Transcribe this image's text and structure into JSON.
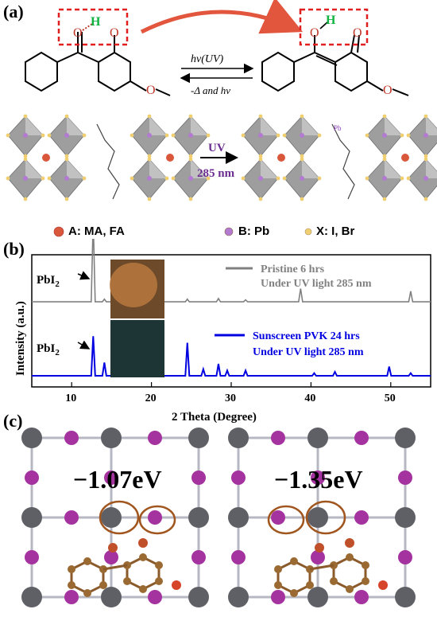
{
  "panel_a": {
    "label": "(a)",
    "forward_label": "hν(UV)",
    "reverse_label": "-Δ and hν",
    "h_atom": "H",
    "uv_label": "UV",
    "uv_wavelength": "285 nm",
    "pb_atom": "Pb",
    "legend": [
      {
        "label": "A: MA, FA",
        "color": "#d9583c"
      },
      {
        "label": "B: Pb",
        "color": "#b27ad0"
      },
      {
        "label": "X: I, Br",
        "color": "#f0cf70"
      }
    ]
  },
  "panel_b": {
    "label": "(b)",
    "peak_label_base": "PbI",
    "peak_label_sub": "2",
    "legend_top": [
      "Pristine 6 hrs",
      "Under UV light 285 nm"
    ],
    "legend_bottom": [
      "Sunscreen PVK 24 hrs",
      "Under UV light 285 nm"
    ],
    "chart_data": {
      "type": "line",
      "xlabel": "2 Theta (Degree)",
      "ylabel": "Intensity (a.u.)",
      "xlim": [
        5,
        55
      ],
      "xticks": [
        10,
        20,
        30,
        40,
        50
      ],
      "series": [
        {
          "name": "Pristine 6 hrs Under UV light 285 nm",
          "color": "#808080",
          "baseline": 0.62,
          "peaks": [
            [
              12.7,
              0.62
            ],
            [
              14.1,
              0.02
            ],
            [
              19.9,
              0.015
            ],
            [
              24.5,
              0.02
            ],
            [
              28.4,
              0.025
            ],
            [
              31.8,
              0.015
            ],
            [
              38.7,
              0.1
            ],
            [
              52.5,
              0.08
            ]
          ]
        },
        {
          "name": "Sunscreen PVK 24 hrs Under UV light 285 nm",
          "color": "#0000e0",
          "baseline": 0.06,
          "peaks": [
            [
              12.7,
              0.3
            ],
            [
              14.1,
              0.1
            ],
            [
              19.9,
              0.03
            ],
            [
              24.5,
              0.25
            ],
            [
              26.5,
              0.05
            ],
            [
              28.4,
              0.09
            ],
            [
              29.5,
              0.04
            ],
            [
              31.8,
              0.04
            ],
            [
              40.4,
              0.02
            ],
            [
              43.0,
              0.03
            ],
            [
              49.8,
              0.07
            ],
            [
              52.5,
              0.02
            ]
          ]
        }
      ]
    }
  },
  "panel_c": {
    "label": "(c)",
    "energies": [
      "−1.07eV",
      "−1.35eV"
    ]
  }
}
